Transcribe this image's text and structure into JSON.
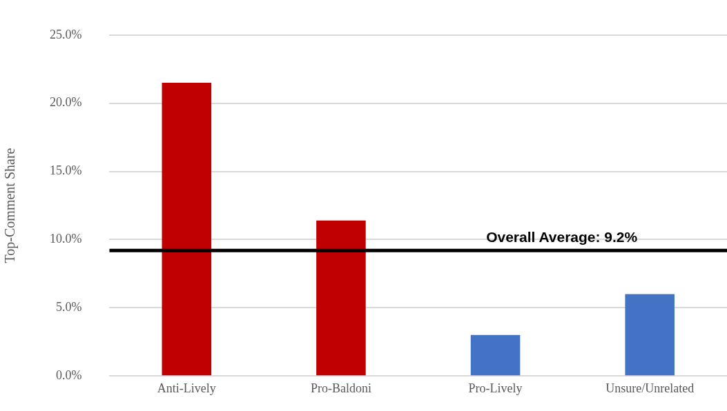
{
  "chart_data": {
    "type": "bar",
    "ylabel": "Top-Comment Share",
    "categories": [
      "Anti-Lively",
      "Pro-Baldoni",
      "Pro-Lively",
      "Unsure/Unrelated"
    ],
    "values": [
      21.5,
      11.4,
      3.0,
      6.0
    ],
    "colors": [
      "#c00000",
      "#c00000",
      "#4472c4",
      "#4472c4"
    ],
    "ylim": [
      0,
      25
    ],
    "yticks": [
      {
        "value": 0,
        "label": "0.0%"
      },
      {
        "value": 5,
        "label": "5.0%"
      },
      {
        "value": 10,
        "label": "10.0%"
      },
      {
        "value": 15,
        "label": "15.0%"
      },
      {
        "value": 20,
        "label": "20.0%"
      },
      {
        "value": 25,
        "label": "25.0%"
      }
    ],
    "grid": "y",
    "ref_lines": [
      {
        "axis": "y",
        "value": 9.2,
        "label": "Overall Average: 9.2%",
        "color": "#000000"
      }
    ]
  }
}
